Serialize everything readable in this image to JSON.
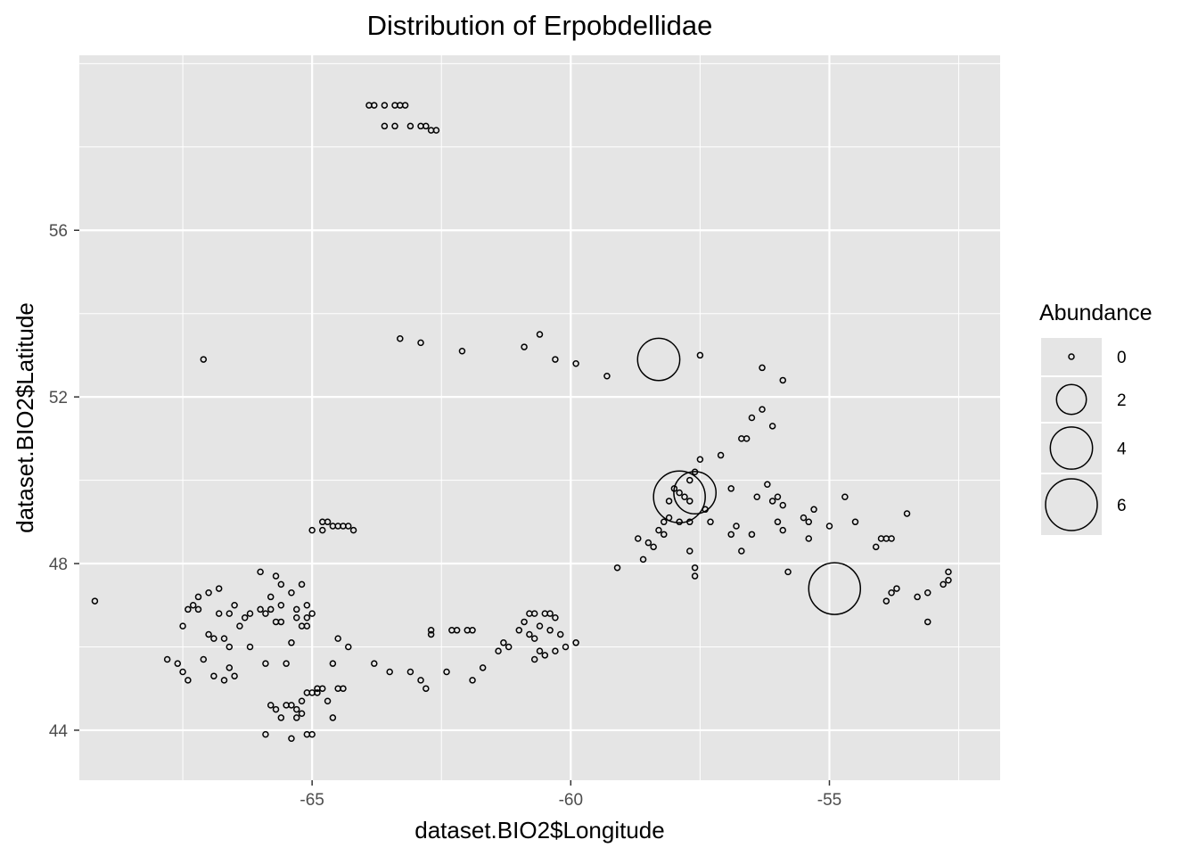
{
  "chart_data": {
    "type": "scatter",
    "title": "Distribution of Erpobdellidae",
    "xlabel": "dataset.BIO2$Longitude",
    "ylabel": "dataset.BIO2$Latitude",
    "xlim": [
      -69.5,
      -51.7
    ],
    "ylim": [
      42.8,
      60.2
    ],
    "x_ticks": [
      -65,
      -60,
      -55
    ],
    "x_tick_labels": [
      "-65",
      "-60",
      "-55"
    ],
    "y_ticks": [
      44,
      48,
      52,
      56
    ],
    "y_tick_labels": [
      "44",
      "48",
      "52",
      "56"
    ],
    "grid": true,
    "legend": {
      "title": "Abundance",
      "position": "right",
      "entries": [
        {
          "label": "0",
          "value": 0
        },
        {
          "label": "2",
          "value": 2
        },
        {
          "label": "4",
          "value": 4
        },
        {
          "label": "6",
          "value": 6
        }
      ]
    },
    "colors": {
      "panel": "#e5e5e5",
      "grid": "#ffffff",
      "point": "#000000",
      "text": "#000000",
      "tick_text": "#4d4d4d"
    },
    "series": [
      {
        "size_field": "abundance",
        "points": [
          [
            -63.9,
            59.0,
            0
          ],
          [
            -63.8,
            59.0,
            0
          ],
          [
            -63.6,
            59.0,
            0
          ],
          [
            -63.4,
            59.0,
            0
          ],
          [
            -63.3,
            59.0,
            0
          ],
          [
            -63.2,
            59.0,
            0
          ],
          [
            -63.6,
            58.5,
            0
          ],
          [
            -63.4,
            58.5,
            0
          ],
          [
            -63.1,
            58.5,
            0
          ],
          [
            -62.9,
            58.5,
            0
          ],
          [
            -62.7,
            58.4,
            0
          ],
          [
            -62.6,
            58.4,
            0
          ],
          [
            -62.8,
            58.5,
            0
          ],
          [
            -67.1,
            52.9,
            0
          ],
          [
            -63.3,
            53.4,
            0
          ],
          [
            -62.9,
            53.3,
            0
          ],
          [
            -62.1,
            53.1,
            0
          ],
          [
            -60.9,
            53.2,
            0
          ],
          [
            -60.6,
            53.5,
            0
          ],
          [
            -60.3,
            52.9,
            0
          ],
          [
            -59.9,
            52.8,
            0
          ],
          [
            -59.3,
            52.5,
            0
          ],
          [
            -58.3,
            52.9,
            4
          ],
          [
            -57.5,
            53.0,
            0
          ],
          [
            -56.3,
            52.7,
            0
          ],
          [
            -55.9,
            52.4,
            0
          ],
          [
            -56.1,
            51.3,
            0
          ],
          [
            -56.3,
            51.7,
            0
          ],
          [
            -56.6,
            51.0,
            0
          ],
          [
            -56.5,
            51.5,
            0
          ],
          [
            -56.7,
            51.0,
            0
          ],
          [
            -57.1,
            50.6,
            0
          ],
          [
            -57.5,
            50.5,
            0
          ],
          [
            -57.6,
            50.2,
            0
          ],
          [
            -57.7,
            50.0,
            0
          ],
          [
            -57.9,
            49.7,
            0
          ],
          [
            -58.1,
            49.5,
            0
          ],
          [
            -58.0,
            49.8,
            0
          ],
          [
            -57.8,
            49.6,
            0
          ],
          [
            -57.7,
            49.5,
            0
          ],
          [
            -57.9,
            49.6,
            6
          ],
          [
            -57.6,
            49.7,
            4
          ],
          [
            -57.4,
            49.3,
            0
          ],
          [
            -57.3,
            49.0,
            0
          ],
          [
            -57.7,
            49.0,
            0
          ],
          [
            -58.2,
            49.0,
            0
          ],
          [
            -58.3,
            48.8,
            0
          ],
          [
            -58.5,
            48.5,
            0
          ],
          [
            -58.7,
            48.6,
            0
          ],
          [
            -58.1,
            49.1,
            0
          ],
          [
            -57.9,
            49.0,
            0
          ],
          [
            -58.4,
            48.4,
            0
          ],
          [
            -58.6,
            48.1,
            0
          ],
          [
            -59.1,
            47.9,
            0
          ],
          [
            -58.2,
            48.7,
            0
          ],
          [
            -57.7,
            48.3,
            0
          ],
          [
            -57.6,
            47.9,
            0
          ],
          [
            -57.6,
            47.7,
            0
          ],
          [
            -56.9,
            48.7,
            0
          ],
          [
            -56.8,
            48.9,
            0
          ],
          [
            -56.7,
            48.3,
            0
          ],
          [
            -56.5,
            48.7,
            0
          ],
          [
            -56.2,
            49.9,
            0
          ],
          [
            -56.4,
            49.6,
            0
          ],
          [
            -56.9,
            49.8,
            0
          ],
          [
            -56.0,
            49.6,
            0
          ],
          [
            -55.9,
            49.4,
            0
          ],
          [
            -56.1,
            49.5,
            0
          ],
          [
            -55.5,
            49.1,
            0
          ],
          [
            -55.4,
            49.0,
            0
          ],
          [
            -55.3,
            49.3,
            0
          ],
          [
            -55.9,
            48.8,
            0
          ],
          [
            -56.0,
            49.0,
            0
          ],
          [
            -55.4,
            48.6,
            0
          ],
          [
            -55.0,
            48.9,
            0
          ],
          [
            -55.8,
            47.8,
            0
          ],
          [
            -54.9,
            47.4,
            6
          ],
          [
            -54.7,
            49.6,
            0
          ],
          [
            -54.5,
            49.0,
            0
          ],
          [
            -54.1,
            48.4,
            0
          ],
          [
            -54.0,
            48.6,
            0
          ],
          [
            -53.9,
            48.6,
            0
          ],
          [
            -53.8,
            48.6,
            0
          ],
          [
            -53.5,
            49.2,
            0
          ],
          [
            -53.9,
            47.1,
            0
          ],
          [
            -53.8,
            47.3,
            0
          ],
          [
            -53.7,
            47.4,
            0
          ],
          [
            -53.3,
            47.2,
            0
          ],
          [
            -53.1,
            47.3,
            0
          ],
          [
            -53.1,
            46.6,
            0
          ],
          [
            -52.7,
            47.8,
            0
          ],
          [
            -52.7,
            47.6,
            0
          ],
          [
            -52.8,
            47.5,
            0
          ],
          [
            -65.0,
            48.8,
            0
          ],
          [
            -64.8,
            48.8,
            0
          ],
          [
            -64.7,
            49.0,
            0
          ],
          [
            -64.6,
            48.9,
            0
          ],
          [
            -64.4,
            48.9,
            0
          ],
          [
            -64.3,
            48.9,
            0
          ],
          [
            -64.2,
            48.8,
            0
          ],
          [
            -64.5,
            48.9,
            0
          ],
          [
            -64.8,
            49.0,
            0
          ],
          [
            -69.2,
            47.1,
            0
          ],
          [
            -67.6,
            45.6,
            0
          ],
          [
            -67.8,
            45.7,
            0
          ],
          [
            -67.5,
            45.4,
            0
          ],
          [
            -67.4,
            45.2,
            0
          ],
          [
            -67.1,
            45.7,
            0
          ],
          [
            -66.9,
            45.3,
            0
          ],
          [
            -66.7,
            45.2,
            0
          ],
          [
            -66.5,
            45.3,
            0
          ],
          [
            -66.6,
            45.5,
            0
          ],
          [
            -66.9,
            46.2,
            0
          ],
          [
            -66.7,
            46.2,
            0
          ],
          [
            -67.0,
            46.3,
            0
          ],
          [
            -66.6,
            46.0,
            0
          ],
          [
            -66.2,
            46.0,
            0
          ],
          [
            -67.5,
            46.5,
            0
          ],
          [
            -67.4,
            46.9,
            0
          ],
          [
            -67.2,
            46.9,
            0
          ],
          [
            -66.8,
            46.8,
            0
          ],
          [
            -66.6,
            46.8,
            0
          ],
          [
            -66.5,
            47.0,
            0
          ],
          [
            -66.3,
            46.7,
            0
          ],
          [
            -66.2,
            46.8,
            0
          ],
          [
            -66.0,
            46.9,
            0
          ],
          [
            -65.8,
            46.9,
            0
          ],
          [
            -65.6,
            47.0,
            0
          ],
          [
            -65.8,
            47.2,
            0
          ],
          [
            -65.6,
            47.5,
            0
          ],
          [
            -66.0,
            47.8,
            0
          ],
          [
            -65.7,
            47.7,
            0
          ],
          [
            -65.4,
            47.3,
            0
          ],
          [
            -65.2,
            47.5,
            0
          ],
          [
            -65.1,
            47.0,
            0
          ],
          [
            -65.3,
            46.9,
            0
          ],
          [
            -65.0,
            46.8,
            0
          ],
          [
            -65.1,
            46.7,
            0
          ],
          [
            -65.3,
            46.7,
            0
          ],
          [
            -65.2,
            46.5,
            0
          ],
          [
            -65.1,
            46.5,
            0
          ],
          [
            -65.6,
            46.6,
            0
          ],
          [
            -65.9,
            46.8,
            0
          ],
          [
            -66.4,
            46.5,
            0
          ],
          [
            -67.2,
            47.2,
            0
          ],
          [
            -67.0,
            47.3,
            0
          ],
          [
            -66.8,
            47.4,
            0
          ],
          [
            -67.3,
            47.0,
            0
          ],
          [
            -65.7,
            46.6,
            0
          ],
          [
            -65.4,
            46.1,
            0
          ],
          [
            -65.5,
            45.6,
            0
          ],
          [
            -65.9,
            45.6,
            0
          ],
          [
            -64.5,
            46.2,
            0
          ],
          [
            -64.3,
            46.0,
            0
          ],
          [
            -64.6,
            45.6,
            0
          ],
          [
            -65.1,
            44.9,
            0
          ],
          [
            -65.0,
            44.9,
            0
          ],
          [
            -64.9,
            45.0,
            0
          ],
          [
            -65.2,
            44.7,
            0
          ],
          [
            -65.3,
            44.5,
            0
          ],
          [
            -65.2,
            44.4,
            0
          ],
          [
            -65.3,
            44.3,
            0
          ],
          [
            -65.5,
            44.6,
            0
          ],
          [
            -65.6,
            44.3,
            0
          ],
          [
            -65.7,
            44.5,
            0
          ],
          [
            -65.8,
            44.6,
            0
          ],
          [
            -65.4,
            44.6,
            0
          ],
          [
            -64.7,
            44.7,
            0
          ],
          [
            -64.6,
            44.3,
            0
          ],
          [
            -64.8,
            45.0,
            0
          ],
          [
            -64.9,
            44.9,
            0
          ],
          [
            -64.5,
            45.0,
            0
          ],
          [
            -64.4,
            45.0,
            0
          ],
          [
            -65.9,
            43.9,
            0
          ],
          [
            -65.4,
            43.8,
            0
          ],
          [
            -65.1,
            43.9,
            0
          ],
          [
            -65.0,
            43.9,
            0
          ],
          [
            -63.8,
            45.6,
            0
          ],
          [
            -63.5,
            45.4,
            0
          ],
          [
            -63.1,
            45.4,
            0
          ],
          [
            -62.9,
            45.2,
            0
          ],
          [
            -62.8,
            45.0,
            0
          ],
          [
            -62.4,
            45.4,
            0
          ],
          [
            -61.9,
            45.2,
            0
          ],
          [
            -61.7,
            45.5,
            0
          ],
          [
            -62.7,
            46.3,
            0
          ],
          [
            -62.7,
            46.4,
            0
          ],
          [
            -62.3,
            46.4,
            0
          ],
          [
            -62.2,
            46.4,
            0
          ],
          [
            -62.0,
            46.4,
            0
          ],
          [
            -61.9,
            46.4,
            0
          ],
          [
            -61.4,
            45.9,
            0
          ],
          [
            -61.3,
            46.1,
            0
          ],
          [
            -61.2,
            46.0,
            0
          ],
          [
            -61.0,
            46.4,
            0
          ],
          [
            -60.9,
            46.6,
            0
          ],
          [
            -60.8,
            46.8,
            0
          ],
          [
            -60.7,
            46.8,
            0
          ],
          [
            -60.5,
            46.8,
            0
          ],
          [
            -60.4,
            46.8,
            0
          ],
          [
            -60.3,
            46.7,
            0
          ],
          [
            -60.6,
            46.5,
            0
          ],
          [
            -60.8,
            46.3,
            0
          ],
          [
            -60.7,
            46.2,
            0
          ],
          [
            -60.4,
            46.4,
            0
          ],
          [
            -60.2,
            46.3,
            0
          ],
          [
            -60.1,
            46.0,
            0
          ],
          [
            -60.3,
            45.9,
            0
          ],
          [
            -60.5,
            45.8,
            0
          ],
          [
            -60.7,
            45.7,
            0
          ],
          [
            -60.6,
            45.9,
            0
          ],
          [
            -59.9,
            46.1,
            0
          ]
        ]
      }
    ]
  }
}
